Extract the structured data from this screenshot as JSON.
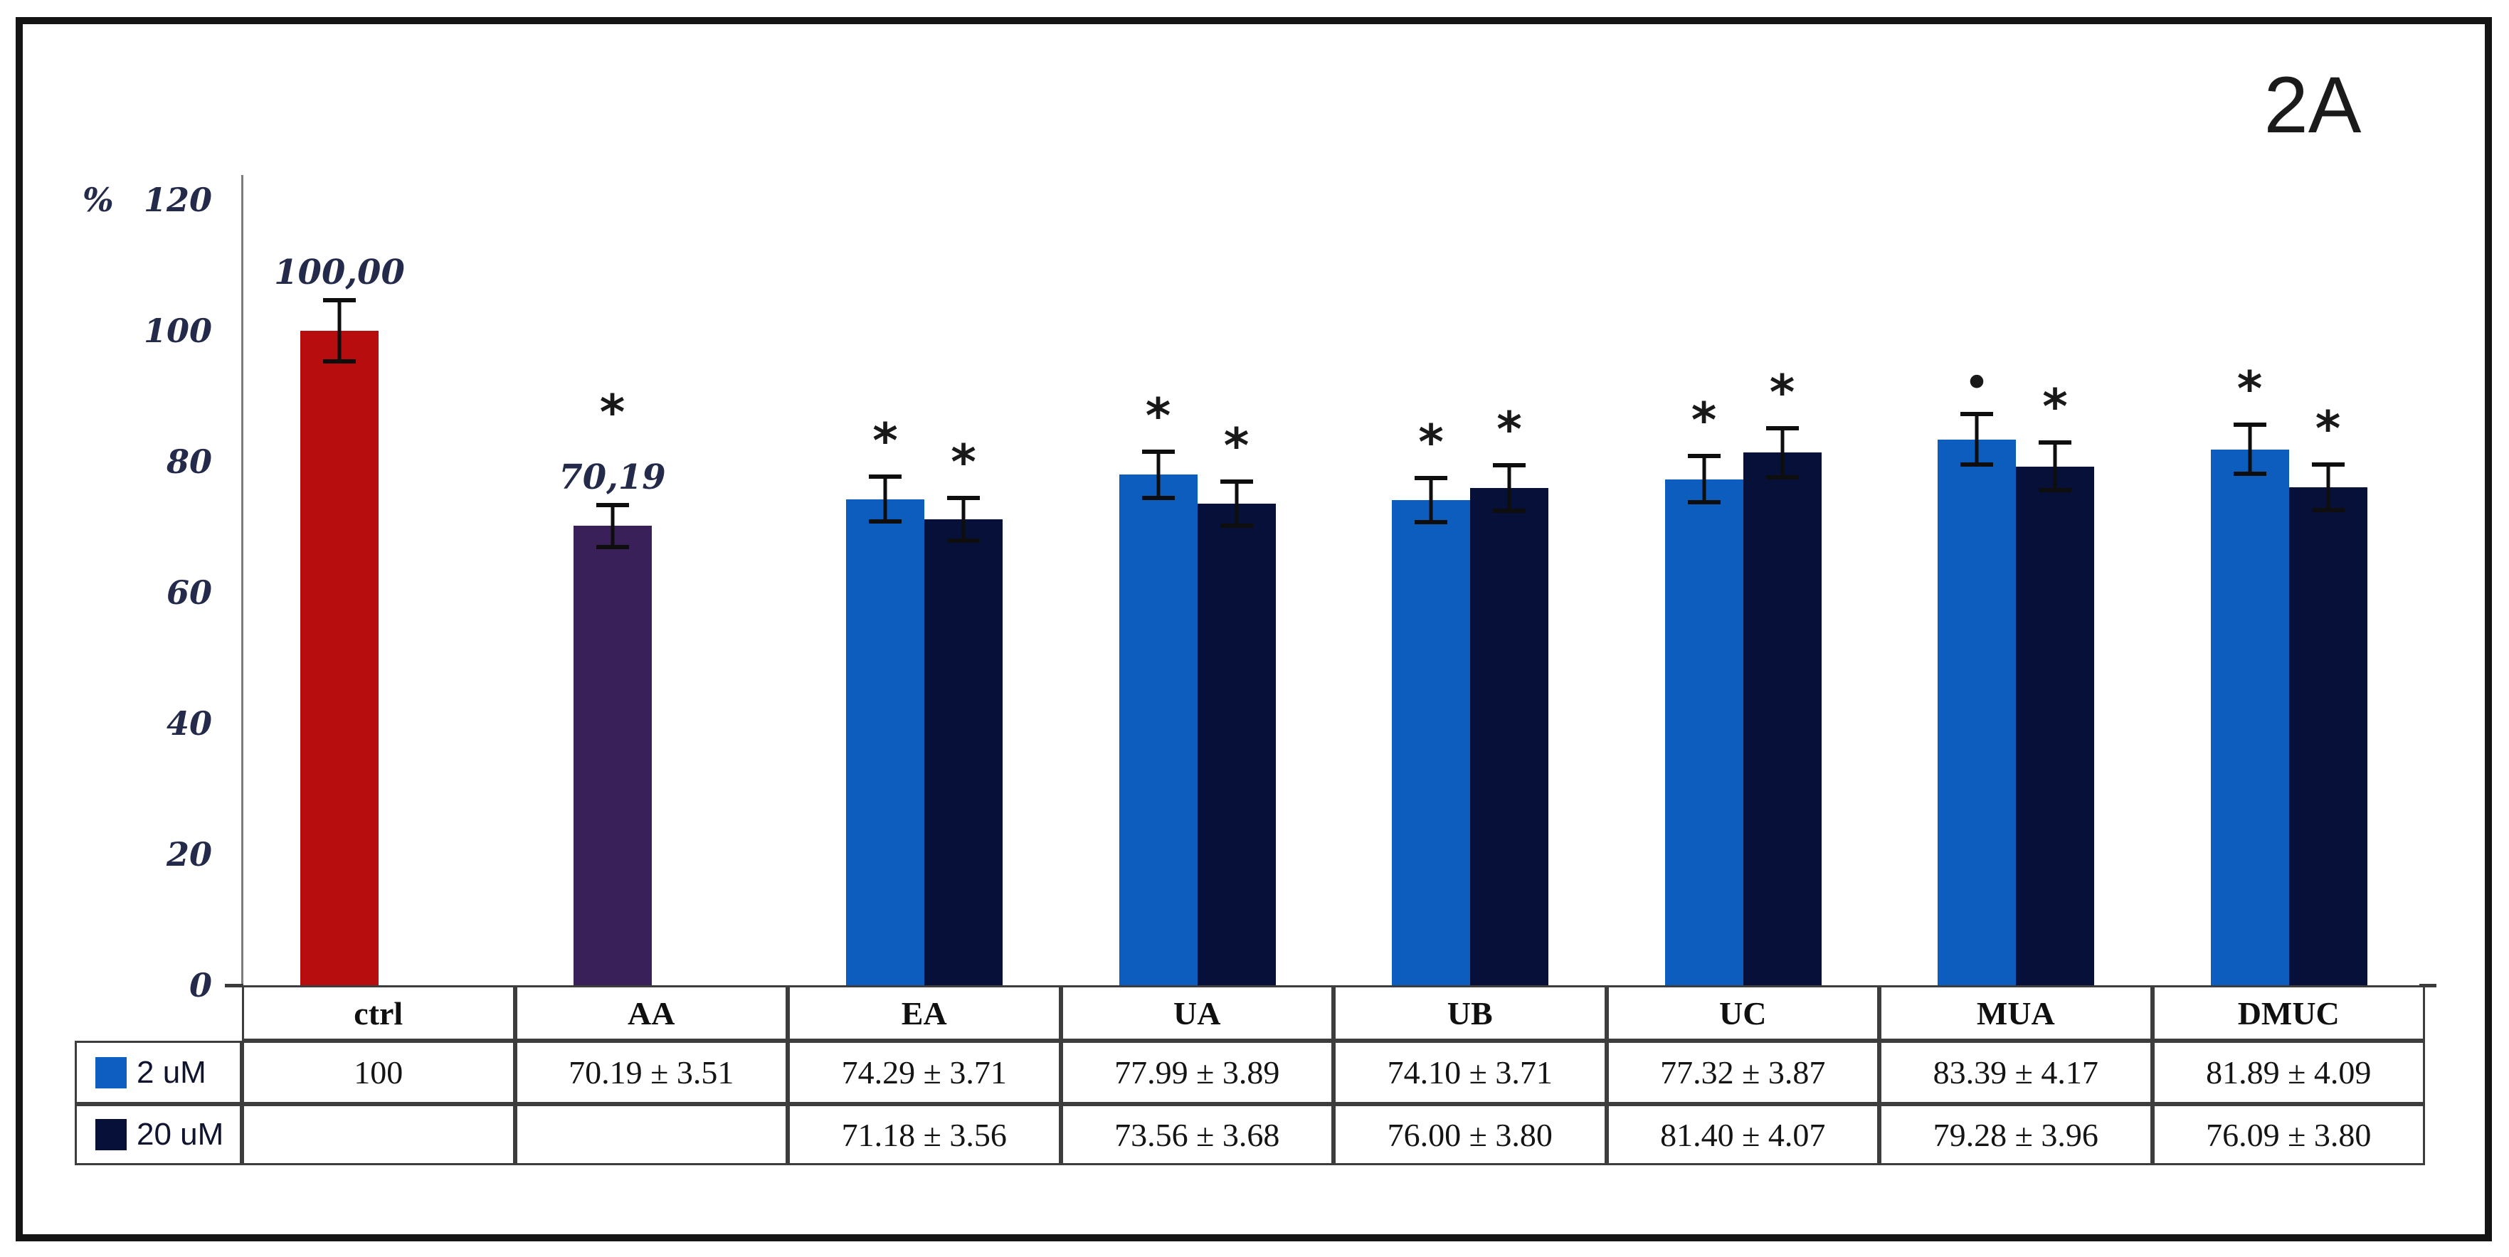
{
  "figure_label": "2A",
  "y_axis": {
    "unit_label": "%",
    "ticks": [
      120,
      100,
      80,
      60,
      40,
      20,
      0
    ],
    "ylim": [
      0,
      120
    ]
  },
  "legend": [
    {
      "label": "2 uM",
      "color": "#0d5ec0"
    },
    {
      "label": "20 uM",
      "color": "#061038"
    }
  ],
  "chart_data": {
    "type": "bar",
    "title": "",
    "categories": [
      "ctrl",
      "AA",
      "EA",
      "UA",
      "UB",
      "UC",
      "MUA",
      "DMUC"
    ],
    "ylabel": "%",
    "ylim": [
      0,
      120
    ],
    "grid": false,
    "legend_position": "bottom-left-table",
    "series": [
      {
        "name": "2 uM",
        "values": [
          100,
          70.19,
          74.29,
          77.99,
          74.1,
          77.32,
          83.39,
          81.89
        ],
        "errors": [
          5.0,
          3.51,
          3.71,
          3.89,
          3.71,
          3.87,
          4.17,
          4.09
        ],
        "colors": [
          "#b80d0e",
          "#392058",
          "#0c5dbe",
          "#0c5dbe",
          "#0c5dbe",
          "#0c5dbe",
          "#0c5dbe",
          "#0c5dbe"
        ],
        "marks": [
          "",
          "*",
          "*",
          "*",
          "*",
          "*",
          "•",
          "*"
        ],
        "labels": [
          "100,00",
          "70,19",
          "",
          "",
          "",
          "",
          "",
          ""
        ]
      },
      {
        "name": "20 uM",
        "values": [
          null,
          null,
          71.18,
          73.56,
          76.0,
          81.4,
          79.28,
          76.09
        ],
        "errors": [
          null,
          null,
          3.56,
          3.68,
          3.8,
          4.07,
          3.96,
          3.8
        ],
        "colors": [
          null,
          null,
          "#061038",
          "#061038",
          "#061038",
          "#061038",
          "#061038",
          "#061038"
        ],
        "marks": [
          "",
          "",
          "*",
          "*",
          "*",
          "*",
          "*",
          "*"
        ],
        "labels": [
          "",
          "",
          "",
          "",
          "",
          "",
          "",
          ""
        ]
      }
    ]
  },
  "table": {
    "col_headers": [
      "ctrl",
      "AA",
      "EA",
      "UA",
      "UB",
      "UC",
      "MUA",
      "DMUC"
    ],
    "rows": [
      {
        "label": "2 uM",
        "values": [
          "100",
          "70.19 ± 3.51",
          "74.29 ± 3.71",
          "77.99 ± 3.89",
          "74.10 ± 3.71",
          "77.32 ± 3.87",
          "83.39 ± 4.17",
          "81.89 ± 4.09"
        ]
      },
      {
        "label": "20 uM",
        "values": [
          "",
          "",
          "71.18 ± 3.56",
          "73.56 ± 3.68",
          "76.00 ± 3.80",
          "81.40 ± 4.07",
          "79.28 ± 3.96",
          "76.09 ± 3.80"
        ]
      }
    ]
  }
}
